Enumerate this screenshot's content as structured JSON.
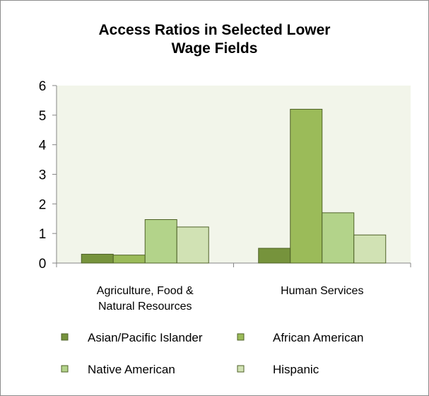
{
  "chart_data": {
    "type": "bar",
    "title": "Access Ratios in Selected Lower Wage Fields",
    "title_lines": [
      "Access Ratios in Selected Lower",
      "Wage Fields"
    ],
    "categories": [
      "Agriculture, Food & Natural Resources",
      "Human Services"
    ],
    "category_lines": [
      [
        "Agriculture, Food &",
        "Natural Resources"
      ],
      [
        "Human Services"
      ]
    ],
    "series": [
      {
        "name": "Asian/Pacific Islander",
        "values": [
          0.3,
          0.5
        ],
        "color": "#76933c"
      },
      {
        "name": "African American",
        "values": [
          0.27,
          5.2
        ],
        "color": "#9bbb59"
      },
      {
        "name": "Native American",
        "values": [
          1.47,
          1.7
        ],
        "color": "#b3d38a"
      },
      {
        "name": "Hispanic",
        "values": [
          1.22,
          0.95
        ],
        "color": "#d1e2b4"
      }
    ],
    "xlabel": "",
    "ylabel": "",
    "ylim": [
      0,
      6
    ],
    "yticks": [
      "0",
      "1",
      "2",
      "3",
      "4",
      "5",
      "6"
    ],
    "grid": false,
    "legend_position": "bottom",
    "plot_background": "#f2f5ea",
    "bar_outline": "#4f6228"
  }
}
